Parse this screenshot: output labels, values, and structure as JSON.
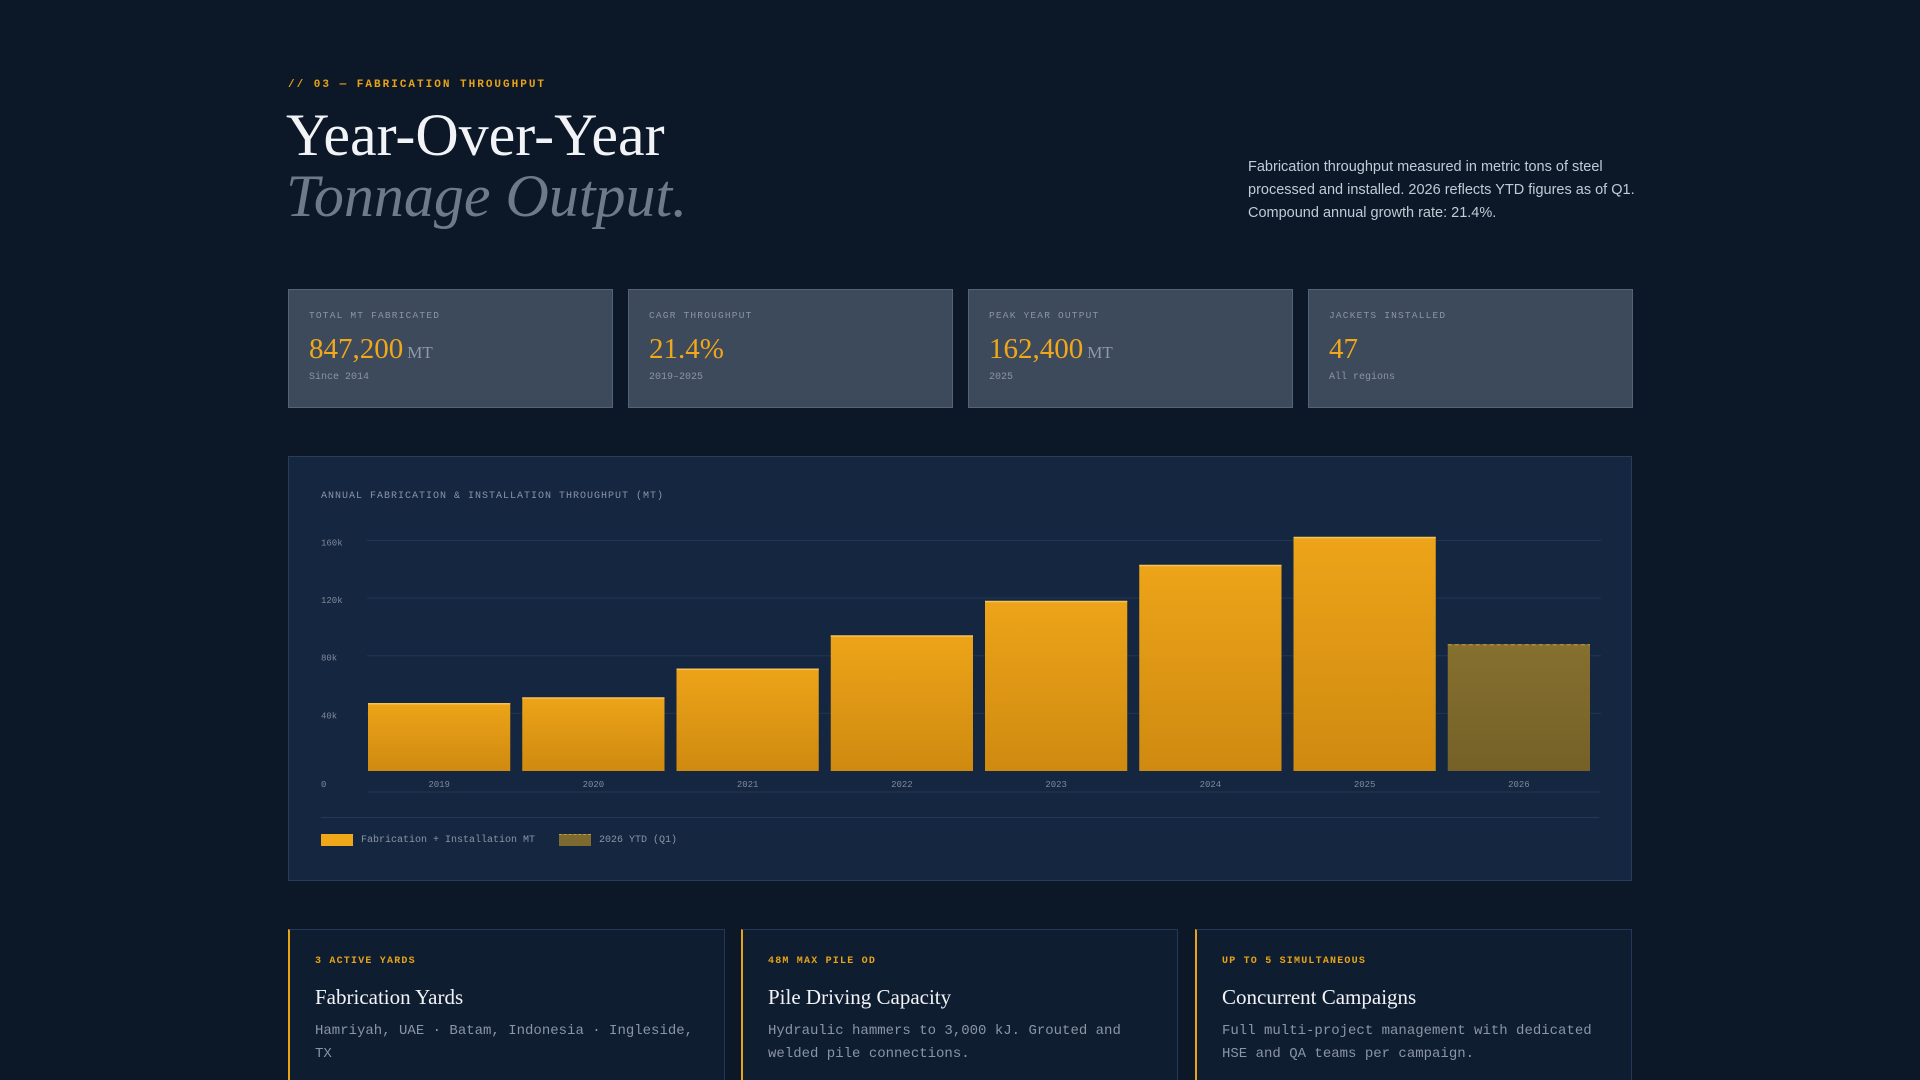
{
  "header": {
    "eyebrow": "// 03 — FABRICATION THROUGHPUT",
    "title_line1": "Year-Over-Year",
    "title_line2": "Tonnage Output.",
    "intro": "Fabrication throughput measured in metric tons of steel processed and installed. 2026 reflects YTD figures as of Q1. Compound annual growth rate: 21.4%."
  },
  "stats": [
    {
      "label": "TOTAL MT FABRICATED",
      "value": "847,200",
      "unit": "MT",
      "sub": "Since 2014"
    },
    {
      "label": "CAGR THROUGHPUT",
      "value": "21.4%",
      "unit": "",
      "sub": "2019–2025"
    },
    {
      "label": "PEAK YEAR OUTPUT",
      "value": "162,400",
      "unit": "MT",
      "sub": "2025"
    },
    {
      "label": "JACKETS INSTALLED",
      "value": "47",
      "unit": "",
      "sub": "All regions"
    }
  ],
  "colors": {
    "accent": "#f0a71a",
    "ytd_bar": "#7d6a30",
    "background": "#0c1828",
    "panel": "#142640"
  },
  "chart_data": {
    "type": "bar",
    "title": "ANNUAL FABRICATION & INSTALLATION THROUGHPUT (MT)",
    "categories": [
      "2019",
      "2020",
      "2021",
      "2022",
      "2023",
      "2024",
      "2025",
      "2026"
    ],
    "series": [
      {
        "name": "Fabrication + Installation MT",
        "values": [
          47000,
          51000,
          71000,
          94000,
          118000,
          143000,
          162400,
          88000
        ]
      }
    ],
    "ytd_index": 7,
    "yticks": [
      "0",
      "40k",
      "80k",
      "120k",
      "160k"
    ],
    "ytick_values": [
      0,
      40000,
      80000,
      120000,
      160000
    ],
    "ylim": [
      0,
      162400
    ],
    "grid": true,
    "legend": [
      {
        "label": "Fabrication + Installation MT",
        "style": "solid"
      },
      {
        "label": "2026 YTD (Q1)",
        "style": "ytd"
      }
    ],
    "legend_position": "bottom-left"
  },
  "features": [
    {
      "tag": "3 ACTIVE YARDS",
      "title": "Fabrication Yards",
      "desc": "Hamriyah, UAE · Batam, Indonesia · Ingleside, TX"
    },
    {
      "tag": "48M MAX PILE OD",
      "title": "Pile Driving Capacity",
      "desc": "Hydraulic hammers to 3,000 kJ. Grouted and welded pile connections."
    },
    {
      "tag": "UP TO 5 SIMULTANEOUS",
      "title": "Concurrent Campaigns",
      "desc": "Full multi-project management with dedicated HSE and QA teams per campaign."
    }
  ]
}
